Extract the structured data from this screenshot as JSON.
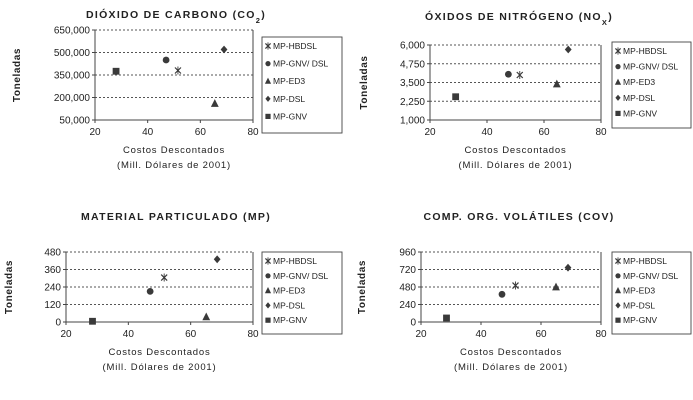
{
  "chart_data": [
    {
      "type": "scatter",
      "title": "DIÓXIDO DE CARBONO (CO",
      "title_sub": "2",
      "title_end": ")",
      "ylabel": "Toneladas",
      "xlabel_1": "Costos Descontados",
      "xlabel_2": "(Mill. Dólares de 2001)",
      "xlim": [
        20,
        80
      ],
      "ylim": [
        50000,
        650000
      ],
      "xticks": [
        20,
        40,
        60,
        80
      ],
      "xtick_labels": [
        "20",
        "40",
        "60",
        "80"
      ],
      "yticks": [
        50000,
        200000,
        350000,
        500000,
        650000
      ],
      "ytick_labels": [
        "50,000",
        "200,000",
        "350,000",
        "500,000",
        "650,000"
      ],
      "grid": "horizontal dotted",
      "legend_position": "right",
      "series": [
        {
          "name": "MP-HBDSL",
          "marker": "x",
          "x": [
            51.5
          ],
          "y": [
            380000
          ]
        },
        {
          "name": "MP-GNV/ DSL",
          "marker": "circle",
          "x": [
            47
          ],
          "y": [
            450000
          ]
        },
        {
          "name": "MP-ED3",
          "marker": "triangle",
          "x": [
            65.5
          ],
          "y": [
            160000
          ]
        },
        {
          "name": "MP-DSL",
          "marker": "diamond",
          "x": [
            69
          ],
          "y": [
            520000
          ]
        },
        {
          "name": "MP-GNV",
          "marker": "square",
          "x": [
            28
          ],
          "y": [
            375000
          ]
        }
      ]
    },
    {
      "type": "scatter",
      "title": "ÓXIDOS DE NITRÓGENO (NO",
      "title_sub": "X",
      "title_end": ")",
      "ylabel": "Toneladas",
      "xlabel_1": "Costos Descontados",
      "xlabel_2": "(Mill. Dólares de 2001)",
      "xlim": [
        20,
        80
      ],
      "ylim": [
        1000,
        6000
      ],
      "xticks": [
        20,
        40,
        60,
        80
      ],
      "xtick_labels": [
        "20",
        "40",
        "60",
        "80"
      ],
      "yticks": [
        1000,
        2250,
        3500,
        4750,
        6000
      ],
      "ytick_labels": [
        "1,000",
        "2,250",
        "3,500",
        "4,750",
        "6,000"
      ],
      "grid": "horizontal dotted",
      "legend_position": "right",
      "series": [
        {
          "name": "MP-HBDSL",
          "marker": "x",
          "x": [
            51.5
          ],
          "y": [
            4000
          ]
        },
        {
          "name": "MP-GNV/ DSL",
          "marker": "circle",
          "x": [
            47.5
          ],
          "y": [
            4050
          ]
        },
        {
          "name": "MP-ED3",
          "marker": "triangle",
          "x": [
            64.5
          ],
          "y": [
            3400
          ]
        },
        {
          "name": "MP-DSL",
          "marker": "diamond",
          "x": [
            68.5
          ],
          "y": [
            5700
          ]
        },
        {
          "name": "MP-GNV",
          "marker": "square",
          "x": [
            29
          ],
          "y": [
            2550
          ]
        }
      ]
    },
    {
      "type": "scatter",
      "title": "MATERIAL PARTICULADO (MP)",
      "ylabel": "Toneladas",
      "xlabel_1": "Costos Descontados",
      "xlabel_2": "(Mill. Dólares de 2001)",
      "xlim": [
        20,
        80
      ],
      "ylim": [
        0,
        480
      ],
      "xticks": [
        20,
        40,
        60,
        80
      ],
      "xtick_labels": [
        "20",
        "40",
        "60",
        "80"
      ],
      "yticks": [
        0,
        120,
        240,
        360,
        480
      ],
      "ytick_labels": [
        "0",
        "120",
        "240",
        "360",
        "480"
      ],
      "grid": "horizontal dotted",
      "legend_position": "right",
      "series": [
        {
          "name": "MP-HBDSL",
          "marker": "x",
          "x": [
            51.5
          ],
          "y": [
            305
          ]
        },
        {
          "name": "MP-GNV/ DSL",
          "marker": "circle",
          "x": [
            47
          ],
          "y": [
            210
          ]
        },
        {
          "name": "MP-ED3",
          "marker": "triangle",
          "x": [
            65
          ],
          "y": [
            35
          ]
        },
        {
          "name": "MP-DSL",
          "marker": "diamond",
          "x": [
            68.5
          ],
          "y": [
            430
          ]
        },
        {
          "name": "MP-GNV",
          "marker": "square",
          "x": [
            28.5
          ],
          "y": [
            5
          ]
        }
      ]
    },
    {
      "type": "scatter",
      "title": "COMP. ORG. VOLÁTILES (COV)",
      "ylabel": "Toneladas",
      "xlabel_1": "Costos Descontados",
      "xlabel_2": "(Mill. Dólares de 2001)",
      "xlim": [
        20,
        80
      ],
      "ylim": [
        0,
        960
      ],
      "xticks": [
        20,
        40,
        60,
        80
      ],
      "xtick_labels": [
        "20",
        "40",
        "60",
        "80"
      ],
      "yticks": [
        0,
        240,
        480,
        720,
        960
      ],
      "ytick_labels": [
        "0",
        "240",
        "480",
        "720",
        "960"
      ],
      "grid": "horizontal dotted",
      "legend_position": "right",
      "series": [
        {
          "name": "MP-HBDSL",
          "marker": "x",
          "x": [
            51.5
          ],
          "y": [
            500
          ]
        },
        {
          "name": "MP-GNV/ DSL",
          "marker": "circle",
          "x": [
            47
          ],
          "y": [
            380
          ]
        },
        {
          "name": "MP-ED3",
          "marker": "triangle",
          "x": [
            65
          ],
          "y": [
            480
          ]
        },
        {
          "name": "MP-DSL",
          "marker": "diamond",
          "x": [
            69
          ],
          "y": [
            745
          ]
        },
        {
          "name": "MP-GNV",
          "marker": "square",
          "x": [
            28.5
          ],
          "y": [
            55
          ]
        }
      ]
    }
  ],
  "colors": {
    "marker": "#3a3a3a",
    "axis": "#444444",
    "grid": "#555555"
  }
}
